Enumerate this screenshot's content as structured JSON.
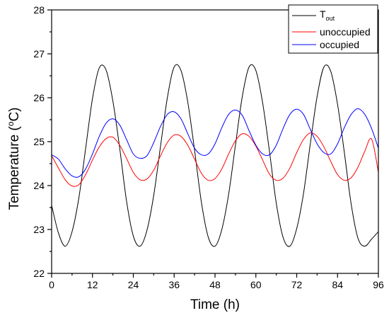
{
  "chart_data": {
    "type": "line",
    "title": "",
    "xlabel": "Time (h)",
    "ylabel": {
      "main": "Temperature (",
      "sup": "o",
      "unit": "C)"
    },
    "xlim": [
      0,
      96
    ],
    "ylim": [
      22,
      28
    ],
    "x_ticks": [
      0,
      12,
      24,
      36,
      48,
      60,
      72,
      84,
      96
    ],
    "x_tick_labels": [
      "0",
      "12",
      "24",
      "36",
      "48",
      "60",
      "72",
      "84",
      "96"
    ],
    "y_ticks": [
      22,
      23,
      24,
      25,
      26,
      27,
      28
    ],
    "y_tick_labels": [
      "22",
      "23",
      "24",
      "25",
      "26",
      "27",
      "28"
    ],
    "grid": false,
    "legend_placement": "top-right",
    "series": [
      {
        "name": "Tout",
        "label_main": "T",
        "label_sub": "out",
        "color": "#000000",
        "x": [
          0,
          2,
          4,
          6,
          8,
          10,
          12,
          14,
          16,
          18,
          20,
          22,
          24,
          26,
          28,
          30,
          32,
          34,
          36,
          38,
          40,
          42,
          44,
          46,
          48,
          50,
          52,
          54,
          56,
          58,
          60,
          62,
          64,
          66,
          68,
          70,
          72,
          74,
          76,
          78,
          80,
          82,
          84,
          86,
          88,
          90,
          92,
          94,
          96
        ],
        "values": [
          23.55,
          22.92,
          22.62,
          22.95,
          23.72,
          24.85,
          25.98,
          26.68,
          26.63,
          25.92,
          24.85,
          23.65,
          22.85,
          22.62,
          22.98,
          23.78,
          24.9,
          26.0,
          26.7,
          26.62,
          25.9,
          24.8,
          23.62,
          22.83,
          22.62,
          23.0,
          23.8,
          24.92,
          26.02,
          26.7,
          26.62,
          25.88,
          24.78,
          23.6,
          22.82,
          22.62,
          23.02,
          23.82,
          24.95,
          26.03,
          26.7,
          26.6,
          25.85,
          24.75,
          23.58,
          22.8,
          22.62,
          22.78,
          22.95
        ]
      },
      {
        "name": "unoccupied",
        "color": "#ff0000",
        "x": [
          0,
          2,
          4,
          6,
          8,
          10,
          12,
          14,
          16,
          18,
          20,
          22,
          24,
          26,
          28,
          30,
          32,
          34,
          36,
          38,
          40,
          42,
          44,
          46,
          48,
          50,
          52,
          54,
          56,
          58,
          60,
          62,
          64,
          66,
          68,
          70,
          72,
          74,
          76,
          78,
          80,
          82,
          84,
          86,
          88,
          90,
          92,
          94,
          96
        ],
        "values": [
          24.68,
          24.4,
          24.13,
          23.99,
          24.02,
          24.25,
          24.58,
          24.88,
          25.07,
          25.1,
          24.92,
          24.62,
          24.3,
          24.13,
          24.15,
          24.35,
          24.68,
          24.98,
          25.15,
          25.12,
          24.92,
          24.6,
          24.28,
          24.12,
          24.16,
          24.38,
          24.72,
          25.02,
          25.18,
          25.12,
          24.9,
          24.58,
          24.26,
          24.12,
          24.17,
          24.4,
          24.75,
          25.05,
          25.2,
          25.12,
          24.88,
          24.55,
          24.25,
          24.12,
          24.18,
          24.42,
          24.78,
          25.06,
          24.3
        ]
      },
      {
        "name": "occupied",
        "color": "#0000ff",
        "x": [
          0,
          2,
          4,
          6,
          8,
          10,
          12,
          14,
          16,
          18,
          20,
          22,
          24,
          26,
          28,
          30,
          32,
          34,
          36,
          38,
          40,
          42,
          44,
          46,
          48,
          50,
          52,
          54,
          56,
          58,
          60,
          62,
          64,
          66,
          68,
          70,
          72,
          74,
          76,
          78,
          80,
          82,
          84,
          86,
          88,
          90,
          92,
          94,
          96
        ],
        "values": [
          24.7,
          24.6,
          24.38,
          24.22,
          24.2,
          24.38,
          24.72,
          25.12,
          25.42,
          25.52,
          25.38,
          25.05,
          24.72,
          24.62,
          24.68,
          24.98,
          25.35,
          25.62,
          25.68,
          25.52,
          25.18,
          24.85,
          24.7,
          24.72,
          24.95,
          25.32,
          25.62,
          25.72,
          25.6,
          25.25,
          24.92,
          24.72,
          24.7,
          24.92,
          25.3,
          25.62,
          25.74,
          25.62,
          25.28,
          24.95,
          24.75,
          24.72,
          24.95,
          25.32,
          25.62,
          25.75,
          25.62,
          25.3,
          24.85
        ]
      }
    ]
  }
}
